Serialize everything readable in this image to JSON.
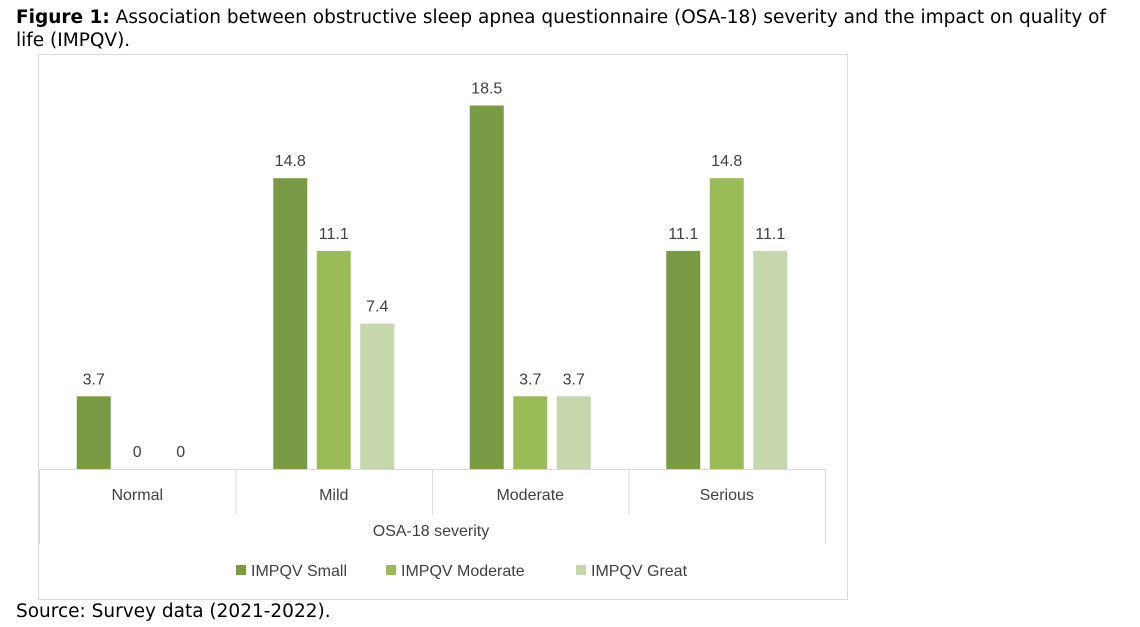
{
  "caption": {
    "label": "Figure 1:",
    "text": " Association between obstructive sleep apnea questionnaire (OSA-18) severity and the impact on quality of life (IMPQV)."
  },
  "source": "Source: Survey data (2021-2022).",
  "chart_data": {
    "type": "bar",
    "title": "",
    "xlabel": "OSA-18 severity",
    "ylabel": "",
    "categories": [
      "Normal",
      "Mild",
      "Moderate",
      "Serious"
    ],
    "series": [
      {
        "name": "IMPQV Small",
        "values": [
          3.7,
          14.8,
          18.5,
          11.1
        ],
        "color": "#7b9a45"
      },
      {
        "name": "IMPQV Moderate",
        "values": [
          0,
          11.1,
          3.7,
          14.8
        ],
        "color": "#9bbb59"
      },
      {
        "name": "IMPQV Great",
        "values": [
          0,
          7.4,
          3.7,
          11.1
        ],
        "color": "#c6d6ad"
      }
    ],
    "ylim": [
      0,
      20
    ],
    "grid": false,
    "legend_position": "bottom"
  }
}
